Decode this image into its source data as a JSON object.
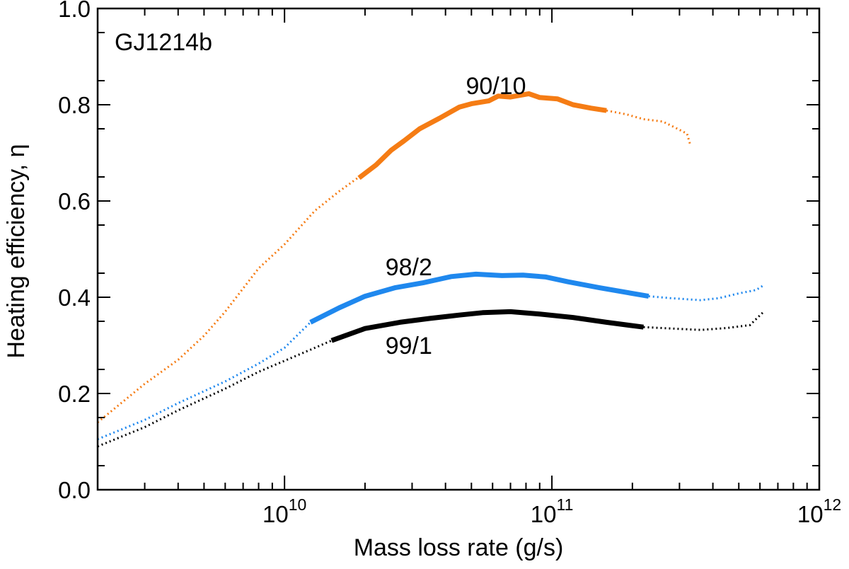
{
  "chart_data": {
    "type": "line",
    "title": "",
    "annotation": "GJ1214b",
    "xlabel": "Mass loss rate (g/s)",
    "ylabel": "Heating efficiency, η",
    "xscale": "log",
    "xlim": [
      2000000000.0,
      1000000000000.0
    ],
    "ylim": [
      0.0,
      1.0
    ],
    "grid": false,
    "y_ticks": [
      "0.0",
      "0.2",
      "0.4",
      "0.6",
      "0.8",
      "1.0"
    ],
    "x_ticks": [
      {
        "base": "10",
        "exp": "10"
      },
      {
        "base": "10",
        "exp": "11"
      },
      {
        "base": "10",
        "exp": "12"
      }
    ],
    "series": [
      {
        "name": "90/10",
        "color": "#F57C14",
        "label_pos": {
          "x": 80000000000.0,
          "y": 0.84
        },
        "dotted_before": [
          [
            2000000000.0,
            0.14
          ],
          [
            3000000000.0,
            0.22
          ],
          [
            4000000000.0,
            0.27
          ],
          [
            5000000000.0,
            0.32
          ],
          [
            6000000000.0,
            0.37
          ],
          [
            8000000000.0,
            0.46
          ],
          [
            10000000000.0,
            0.51
          ],
          [
            13000000000.0,
            0.58
          ],
          [
            16000000000.0,
            0.62
          ],
          [
            19000000000.0,
            0.65
          ]
        ],
        "solid": [
          [
            19000000000.0,
            0.648
          ],
          [
            22000000000.0,
            0.675
          ],
          [
            25000000000.0,
            0.705
          ],
          [
            28000000000.0,
            0.725
          ],
          [
            32000000000.0,
            0.75
          ],
          [
            38000000000.0,
            0.772
          ],
          [
            45000000000.0,
            0.795
          ],
          [
            50000000000.0,
            0.802
          ],
          [
            58000000000.0,
            0.808
          ],
          [
            63000000000.0,
            0.818
          ],
          [
            70000000000.0,
            0.816
          ],
          [
            82000000000.0,
            0.823
          ],
          [
            90000000000.0,
            0.815
          ],
          [
            105000000000.0,
            0.812
          ],
          [
            120000000000.0,
            0.8
          ],
          [
            140000000000.0,
            0.793
          ],
          [
            160000000000.0,
            0.788
          ]
        ],
        "dotted_after": [
          [
            160000000000.0,
            0.788
          ],
          [
            190000000000.0,
            0.78
          ],
          [
            220000000000.0,
            0.77
          ],
          [
            260000000000.0,
            0.765
          ],
          [
            290000000000.0,
            0.752
          ],
          [
            320000000000.0,
            0.74
          ],
          [
            330000000000.0,
            0.715
          ]
        ]
      },
      {
        "name": "98/2",
        "color": "#1F88EE",
        "label_pos": {
          "x": 40000000000.0,
          "y": 0.463
        },
        "dotted_before": [
          [
            2000000000.0,
            0.105
          ],
          [
            3000000000.0,
            0.145
          ],
          [
            4000000000.0,
            0.18
          ],
          [
            6000000000.0,
            0.225
          ],
          [
            8000000000.0,
            0.262
          ],
          [
            10000000000.0,
            0.295
          ],
          [
            12500000000.0,
            0.348
          ]
        ],
        "solid": [
          [
            12500000000.0,
            0.348
          ],
          [
            16000000000.0,
            0.378
          ],
          [
            20000000000.0,
            0.402
          ],
          [
            26000000000.0,
            0.42
          ],
          [
            33000000000.0,
            0.43
          ],
          [
            42000000000.0,
            0.443
          ],
          [
            52000000000.0,
            0.448
          ],
          [
            65000000000.0,
            0.445
          ],
          [
            78000000000.0,
            0.446
          ],
          [
            95000000000.0,
            0.442
          ],
          [
            115000000000.0,
            0.432
          ],
          [
            150000000000.0,
            0.42
          ],
          [
            230000000000.0,
            0.402
          ]
        ],
        "dotted_after": [
          [
            230000000000.0,
            0.402
          ],
          [
            280000000000.0,
            0.398
          ],
          [
            360000000000.0,
            0.394
          ],
          [
            420000000000.0,
            0.398
          ],
          [
            500000000000.0,
            0.408
          ],
          [
            580000000000.0,
            0.415
          ],
          [
            620000000000.0,
            0.425
          ]
        ]
      },
      {
        "name": "99/1",
        "color": "#000000",
        "label_pos": {
          "x": 40000000000.0,
          "y": 0.3
        },
        "dotted_before": [
          [
            2000000000.0,
            0.09
          ],
          [
            3000000000.0,
            0.13
          ],
          [
            4000000000.0,
            0.165
          ],
          [
            6000000000.0,
            0.21
          ],
          [
            8000000000.0,
            0.245
          ],
          [
            10000000000.0,
            0.268
          ],
          [
            13000000000.0,
            0.295
          ],
          [
            15000000000.0,
            0.31
          ]
        ],
        "solid": [
          [
            15000000000.0,
            0.31
          ],
          [
            20000000000.0,
            0.335
          ],
          [
            27000000000.0,
            0.348
          ],
          [
            35000000000.0,
            0.356
          ],
          [
            45000000000.0,
            0.363
          ],
          [
            55000000000.0,
            0.368
          ],
          [
            70000000000.0,
            0.37
          ],
          [
            90000000000.0,
            0.365
          ],
          [
            120000000000.0,
            0.358
          ],
          [
            160000000000.0,
            0.348
          ],
          [
            220000000000.0,
            0.338
          ]
        ],
        "dotted_after": [
          [
            220000000000.0,
            0.338
          ],
          [
            280000000000.0,
            0.335
          ],
          [
            360000000000.0,
            0.332
          ],
          [
            450000000000.0,
            0.336
          ],
          [
            550000000000.0,
            0.342
          ],
          [
            620000000000.0,
            0.37
          ]
        ]
      }
    ]
  }
}
